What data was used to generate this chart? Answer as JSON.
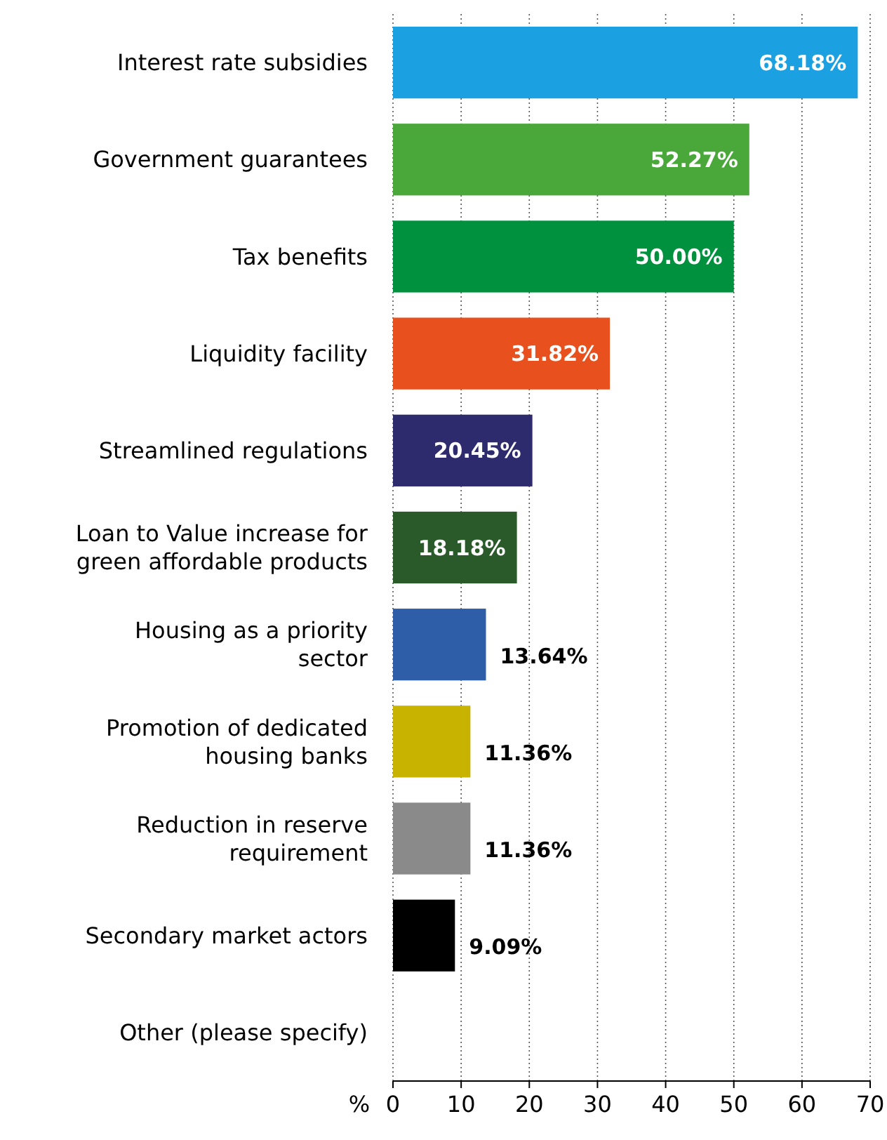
{
  "chart_data": {
    "type": "bar",
    "orientation": "horizontal",
    "xlabel": "%",
    "categories": [
      "Interest rate subsidies",
      "Government guarantees",
      "Tax benefits",
      "Liquidity facility",
      "Streamlined regulations",
      "Loan to Value increase for green affordable products",
      "Housing as a priority sector",
      "Promotion of dedicated housing banks",
      "Reduction in reserve requirement",
      "Secondary market actors",
      "Other (please specify)"
    ],
    "values": [
      68.18,
      52.27,
      50.0,
      31.82,
      20.45,
      18.18,
      13.64,
      11.36,
      11.36,
      9.09,
      0
    ],
    "colors": [
      "#1ba1e2",
      "#4aa83a",
      "#00913f",
      "#e8501e",
      "#2e2a6e",
      "#2a5a2a",
      "#2f5ea8",
      "#c8b400",
      "#8a8a8a",
      "#000000",
      "#808080"
    ],
    "value_labels": [
      "68.18%",
      "52.27%",
      "50.00%",
      "31.82%",
      "20.45%",
      "18.18%",
      "13.64%",
      "11.36%",
      "11.36%",
      "9.09%",
      null
    ],
    "xlim": [
      0,
      70
    ],
    "xticks": [
      0,
      10,
      20,
      30,
      40,
      50,
      60,
      70
    ],
    "grid": "x"
  }
}
